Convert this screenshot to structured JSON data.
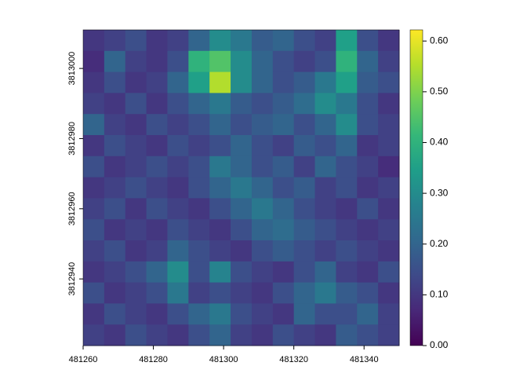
{
  "chart_data": {
    "type": "heatmap",
    "colormap": "viridis",
    "x": [
      481263,
      481269,
      481275,
      481281,
      481287,
      481293,
      481299,
      481305,
      481311,
      481317,
      481323,
      481329,
      481335,
      481341,
      481347
    ],
    "y": [
      3813008,
      3813002,
      3812996,
      3812990,
      3812984,
      3812978,
      3812972,
      3812966,
      3812960,
      3812954,
      3812948,
      3812942,
      3812936,
      3812930,
      3812924
    ],
    "z": [
      [
        0.1,
        0.12,
        0.15,
        0.1,
        0.12,
        0.2,
        0.3,
        0.25,
        0.18,
        0.2,
        0.15,
        0.12,
        0.35,
        0.15,
        0.1
      ],
      [
        0.08,
        0.2,
        0.12,
        0.1,
        0.15,
        0.4,
        0.45,
        0.3,
        0.2,
        0.15,
        0.12,
        0.15,
        0.4,
        0.2,
        0.12
      ],
      [
        0.1,
        0.15,
        0.1,
        0.12,
        0.2,
        0.35,
        0.55,
        0.3,
        0.2,
        0.15,
        0.18,
        0.25,
        0.35,
        0.18,
        0.15
      ],
      [
        0.12,
        0.1,
        0.15,
        0.1,
        0.15,
        0.2,
        0.25,
        0.18,
        0.15,
        0.18,
        0.22,
        0.3,
        0.25,
        0.15,
        0.1
      ],
      [
        0.2,
        0.12,
        0.1,
        0.15,
        0.12,
        0.15,
        0.2,
        0.15,
        0.18,
        0.2,
        0.15,
        0.2,
        0.3,
        0.15,
        0.12
      ],
      [
        0.1,
        0.15,
        0.12,
        0.1,
        0.15,
        0.12,
        0.15,
        0.2,
        0.15,
        0.12,
        0.18,
        0.15,
        0.2,
        0.1,
        0.12
      ],
      [
        0.15,
        0.1,
        0.12,
        0.15,
        0.12,
        0.15,
        0.25,
        0.2,
        0.15,
        0.18,
        0.12,
        0.2,
        0.15,
        0.12,
        0.08
      ],
      [
        0.1,
        0.12,
        0.15,
        0.12,
        0.1,
        0.15,
        0.2,
        0.25,
        0.2,
        0.15,
        0.18,
        0.12,
        0.15,
        0.1,
        0.12
      ],
      [
        0.12,
        0.15,
        0.1,
        0.15,
        0.12,
        0.1,
        0.15,
        0.2,
        0.25,
        0.2,
        0.15,
        0.12,
        0.1,
        0.15,
        0.1
      ],
      [
        0.15,
        0.1,
        0.12,
        0.1,
        0.15,
        0.12,
        0.1,
        0.15,
        0.2,
        0.22,
        0.18,
        0.15,
        0.12,
        0.1,
        0.12
      ],
      [
        0.12,
        0.15,
        0.1,
        0.12,
        0.2,
        0.15,
        0.12,
        0.1,
        0.15,
        0.18,
        0.15,
        0.12,
        0.15,
        0.12,
        0.1
      ],
      [
        0.1,
        0.12,
        0.15,
        0.2,
        0.3,
        0.15,
        0.28,
        0.15,
        0.12,
        0.1,
        0.15,
        0.2,
        0.12,
        0.1,
        0.15
      ],
      [
        0.15,
        0.1,
        0.12,
        0.15,
        0.25,
        0.12,
        0.15,
        0.12,
        0.1,
        0.15,
        0.2,
        0.25,
        0.18,
        0.15,
        0.1
      ],
      [
        0.1,
        0.15,
        0.12,
        0.1,
        0.15,
        0.2,
        0.25,
        0.15,
        0.12,
        0.1,
        0.2,
        0.15,
        0.15,
        0.2,
        0.12
      ],
      [
        0.12,
        0.1,
        0.15,
        0.12,
        0.1,
        0.15,
        0.2,
        0.12,
        0.1,
        0.15,
        0.12,
        0.1,
        0.18,
        0.15,
        0.12
      ]
    ],
    "xlim": [
      481260,
      481350
    ],
    "ylim": [
      3812921,
      3813011
    ],
    "xticks": [
      481260,
      481280,
      481300,
      481320,
      481340
    ],
    "yticks": [
      3812940,
      3812960,
      3812980,
      3813000
    ],
    "clim": [
      0,
      0.622
    ],
    "cticks": [
      {
        "value": 0,
        "label": "0.00"
      },
      {
        "value": 0.1,
        "label": "0.10"
      },
      {
        "value": 0.2,
        "label": "0.20"
      },
      {
        "value": 0.3,
        "label": "0.30"
      },
      {
        "value": 0.4,
        "label": "0.40"
      },
      {
        "value": 0.5,
        "label": "0.50"
      },
      {
        "value": 0.6,
        "label": "0.60"
      }
    ]
  }
}
